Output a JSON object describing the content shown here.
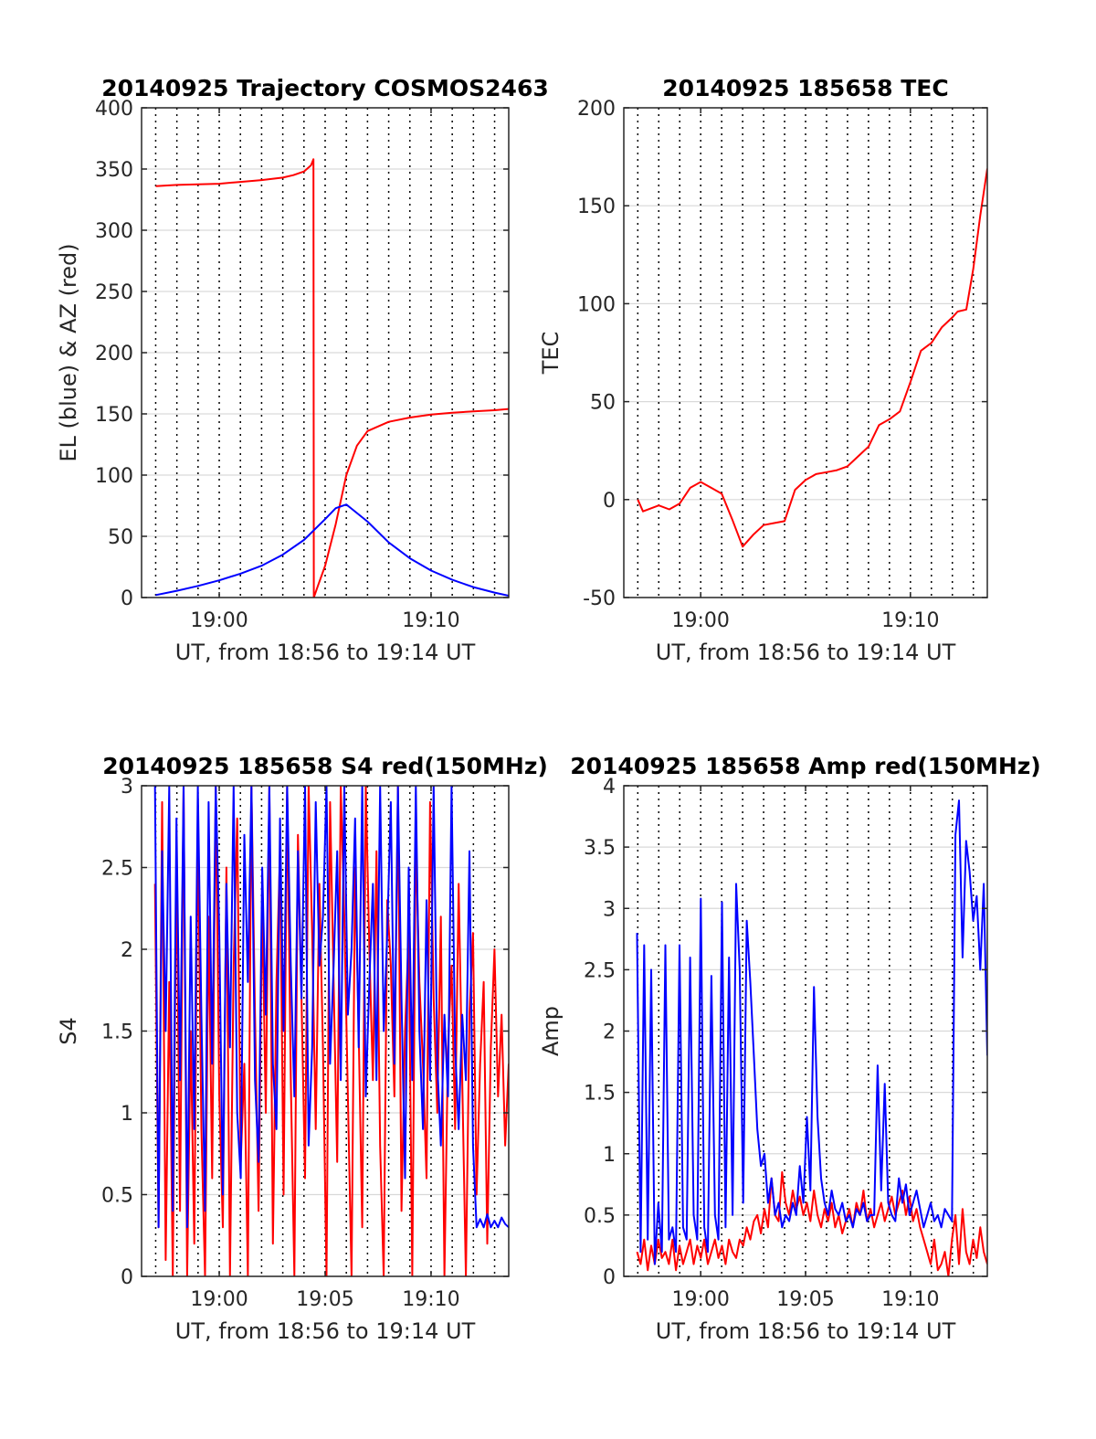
{
  "colors": {
    "red": "#ff0000",
    "blue": "#0000ff",
    "grid": "#000000",
    "ygrid": "#d9d9d9",
    "axis": "#262626"
  },
  "chart_data": [
    {
      "type": "line",
      "title": "20140925 Trajectory COSMOS2463",
      "xlabel": "UT, from 18:56 to 19:14 UT",
      "ylabel": "EL (blue) & AZ (red)",
      "xlim": [
        "18:56:20",
        "19:13:40"
      ],
      "ylim": [
        0,
        400
      ],
      "x_ticks": [
        "19:00",
        "19:10"
      ],
      "y_ticks": [
        0,
        50,
        100,
        150,
        200,
        250,
        300,
        350,
        400
      ],
      "minute_grid": true,
      "y_grid": true,
      "series": [
        {
          "color": "red",
          "x": [
            "18:57:00",
            "18:58:00",
            "18:59:00",
            "19:00:00",
            "19:01:00",
            "19:02:00",
            "19:03:00",
            "19:03:30",
            "19:04:00",
            "19:04:20",
            "19:04:27",
            "19:04:28",
            "19:04:40",
            "19:05:00",
            "19:05:30",
            "19:06:00",
            "19:06:30",
            "19:07:00",
            "19:08:00",
            "19:09:00",
            "19:10:00",
            "19:11:00",
            "19:12:00",
            "19:13:00",
            "19:13:40"
          ],
          "values": [
            336,
            337,
            337.5,
            338,
            339.5,
            341,
            343,
            345,
            348,
            353,
            358,
            0,
            10,
            26,
            60,
            100,
            124,
            136,
            143.5,
            147,
            149.5,
            151,
            152,
            153,
            154
          ]
        },
        {
          "color": "blue",
          "x": [
            "18:57:00",
            "18:58:00",
            "18:59:00",
            "19:00:00",
            "19:01:00",
            "19:02:00",
            "19:03:00",
            "19:04:00",
            "19:05:00",
            "19:05:30",
            "19:06:00",
            "19:07:00",
            "19:08:00",
            "19:09:00",
            "19:10:00",
            "19:11:00",
            "19:12:00",
            "19:13:00",
            "19:13:40"
          ],
          "values": [
            2,
            5.5,
            9.5,
            14,
            19.5,
            26,
            35,
            47,
            64,
            73,
            76,
            62,
            45,
            32,
            22,
            14.5,
            8.5,
            4,
            1.5
          ]
        }
      ]
    },
    {
      "type": "line",
      "title": "20140925 185658 TEC",
      "xlabel": "UT, from 18:56 to 19:14 UT",
      "ylabel": "TEC",
      "xlim": [
        "18:56:20",
        "19:13:40"
      ],
      "ylim": [
        -50,
        200
      ],
      "x_ticks": [
        "19:00",
        "19:10"
      ],
      "y_ticks": [
        -50,
        0,
        50,
        100,
        150,
        200
      ],
      "minute_grid": true,
      "y_grid": true,
      "series": [
        {
          "color": "red",
          "x": [
            "18:57:00",
            "18:57:15",
            "18:58:00",
            "18:58:30",
            "18:59:00",
            "18:59:30",
            "19:00:00",
            "19:00:30",
            "19:01:00",
            "19:01:30",
            "19:02:00",
            "19:02:30",
            "19:03:00",
            "19:03:30",
            "19:04:00",
            "19:04:30",
            "19:05:00",
            "19:05:30",
            "19:06:00",
            "19:06:30",
            "19:07:00",
            "19:07:30",
            "19:08:00",
            "19:08:30",
            "19:09:00",
            "19:09:30",
            "19:10:00",
            "19:10:30",
            "19:11:00",
            "19:11:30",
            "19:12:00",
            "19:12:15",
            "19:12:40",
            "19:13:00",
            "19:13:20",
            "19:13:40"
          ],
          "values": [
            0,
            -6,
            -3,
            -5,
            -2,
            6,
            9,
            6,
            3,
            -10,
            -24,
            -18,
            -13,
            -12,
            -11,
            5,
            10,
            13,
            14,
            15,
            17,
            22,
            27,
            38,
            41,
            45,
            60,
            76,
            80,
            88,
            93,
            96,
            97,
            118,
            145,
            169
          ]
        }
      ]
    },
    {
      "type": "line",
      "title": "20140925 185658 S4 red(150MHz)",
      "xlabel": "UT, from 18:56 to 19:14 UT",
      "ylabel": "S4",
      "xlim": [
        "18:56:20",
        "19:13:40"
      ],
      "ylim": [
        0,
        3
      ],
      "x_ticks": [
        "19:00",
        "19:05",
        "19:10"
      ],
      "y_ticks": [
        0,
        0.5,
        1,
        1.5,
        2,
        2.5,
        3
      ],
      "minute_grid": true,
      "y_grid": true,
      "series": [
        {
          "color": "red",
          "x_start": "18:56:58",
          "x_end": "19:13:40",
          "values": [
            2.4,
            0.3,
            2.9,
            0.1,
            1.8,
            0,
            2.6,
            0.4,
            3,
            0,
            1.5,
            0.2,
            2.8,
            0.9,
            0,
            2.2,
            0.6,
            3,
            1.1,
            0.3,
            2.5,
            0,
            1.9,
            2.8,
            0.7,
            1.3,
            0,
            3,
            1.6,
            0.4,
            2.3,
            1,
            3,
            0.2,
            1.8,
            2.6,
            0.5,
            3,
            1.2,
            0,
            2.7,
            1.7,
            0.6,
            3,
            2.1,
            0.9,
            2.4,
            1.4,
            0,
            2.9,
            1.8,
            0.7,
            3,
            2.2,
            1.1,
            0,
            2.5,
            1.5,
            0.3,
            3,
            2,
            1.2,
            2.6,
            0.8,
            0,
            2.3,
            1.9,
            1.1,
            3,
            0.4,
            1.5,
            2.1,
            0,
            2.7,
            1.8,
            1.3,
            0.6,
            2.9,
            1.7,
            1,
            2.2,
            0,
            1.4,
            1.9,
            0.9,
            2.4,
            1.2,
            0,
            1.6,
            2.1,
            0.5,
            1.3,
            1.8,
            0.2,
            1.4,
            2,
            1.1,
            1.6,
            0.8,
            1.3
          ]
        },
        {
          "color": "blue",
          "x_start": "18:56:58",
          "x_end": "19:13:40",
          "values": [
            3,
            0.3,
            2.6,
            1.5,
            3,
            0.4,
            2.8,
            1.2,
            3,
            0.3,
            2.2,
            0.9,
            3,
            1.6,
            0.4,
            2.9,
            1.3,
            3,
            2.1,
            0.5,
            2.4,
            1.4,
            3,
            1,
            0.6,
            2.7,
            1.8,
            3,
            1.2,
            0.7,
            2.5,
            1.6,
            3,
            1.3,
            0.9,
            2.8,
            1.5,
            3,
            1.9,
            1.1,
            2.6,
            1.7,
            3,
            0.8,
            1.4,
            2.9,
            1.9,
            2.2,
            3,
            1.3,
            1.9,
            2.6,
            1.2,
            3,
            1.6,
            2,
            2.8,
            1.4,
            3,
            1.1,
            1.8,
            2.4,
            1.2,
            3,
            1.5,
            2.1,
            2.9,
            1.3,
            3,
            1.7,
            0.6,
            2.5,
            1.2,
            3,
            1.5,
            0.9,
            2.3,
            1.2,
            3,
            1.3,
            0.8,
            1.6,
            1.1,
            3,
            1.4,
            0.9,
            1.6,
            1.2,
            2.6,
            0.8,
            0.3,
            0.35,
            0.3,
            0.38,
            0.3,
            0.34,
            0.3,
            0.36,
            0.32,
            0.3
          ]
        }
      ]
    },
    {
      "type": "line",
      "title": "20140925 185658 Amp red(150MHz)",
      "xlabel": "UT, from 18:56 to 19:14 UT",
      "ylabel": "Amp",
      "xlim": [
        "18:56:20",
        "19:13:40"
      ],
      "ylim": [
        0,
        4
      ],
      "x_ticks": [
        "19:00",
        "19:05",
        "19:10"
      ],
      "y_ticks": [
        0,
        0.5,
        1,
        1.5,
        2,
        2.5,
        3,
        3.5,
        4
      ],
      "minute_grid": true,
      "y_grid": true,
      "series": [
        {
          "color": "red",
          "x_start": "18:56:58",
          "x_end": "19:13:40",
          "values": [
            0.2,
            0.1,
            0.3,
            0.05,
            0.25,
            0.1,
            0.3,
            0.15,
            0.2,
            0.1,
            0.3,
            0.05,
            0.25,
            0.1,
            0.2,
            0.3,
            0.1,
            0.25,
            0.15,
            0.3,
            0.1,
            0.2,
            0.3,
            0.15,
            0.25,
            0.1,
            0.3,
            0.2,
            0.15,
            0.3,
            0.25,
            0.4,
            0.3,
            0.45,
            0.5,
            0.35,
            0.55,
            0.4,
            0.8,
            0.5,
            0.45,
            0.85,
            0.6,
            0.5,
            0.7,
            0.55,
            0.65,
            0.5,
            0.6,
            0.45,
            0.7,
            0.5,
            0.4,
            0.55,
            0.45,
            0.6,
            0.4,
            0.5,
            0.35,
            0.45,
            0.55,
            0.4,
            0.6,
            0.5,
            0.7,
            0.45,
            0.55,
            0.4,
            0.5,
            0.6,
            0.45,
            0.55,
            0.65,
            0.5,
            0.6,
            0.7,
            0.5,
            0.65,
            0.45,
            0.55,
            0.4,
            0.3,
            0.2,
            0.1,
            0.3,
            0.05,
            0.1,
            0.2,
            0,
            0.3,
            0.5,
            0.1,
            0.55,
            0.2,
            0.1,
            0.3,
            0.15,
            0.4,
            0.2,
            0.1
          ]
        },
        {
          "color": "blue",
          "x_start": "18:56:58",
          "x_end": "19:13:40",
          "values": [
            2.8,
            0.2,
            2.7,
            0.3,
            2.5,
            0.1,
            0.6,
            0.2,
            2.7,
            0.3,
            0.4,
            0.2,
            2.7,
            0.4,
            0.3,
            2.6,
            0.5,
            0.3,
            3.08,
            0.4,
            0.2,
            2.45,
            0.5,
            0.3,
            3.05,
            0.4,
            2.6,
            0.5,
            3.2,
            2.5,
            0.6,
            2.9,
            2.4,
            1.8,
            1.2,
            0.9,
            1,
            0.6,
            0.8,
            0.5,
            0.6,
            0.4,
            0.5,
            0.45,
            0.6,
            0.5,
            0.9,
            0.6,
            1.3,
            0.7,
            2.36,
            1.3,
            0.8,
            0.6,
            0.5,
            0.7,
            0.55,
            0.5,
            0.6,
            0.45,
            0.5,
            0.4,
            0.55,
            0.5,
            0.6,
            0.45,
            0.5,
            0.5,
            1.72,
            0.7,
            1.57,
            0.6,
            0.5,
            0.45,
            0.8,
            0.6,
            0.75,
            0.5,
            0.6,
            0.7,
            0.55,
            0.4,
            0.5,
            0.6,
            0.45,
            0.5,
            0.4,
            0.55,
            0.5,
            0.45,
            3.6,
            3.88,
            2.6,
            3.55,
            3.3,
            2.9,
            3.1,
            2.5,
            3.2,
            1.8
          ]
        }
      ]
    }
  ]
}
